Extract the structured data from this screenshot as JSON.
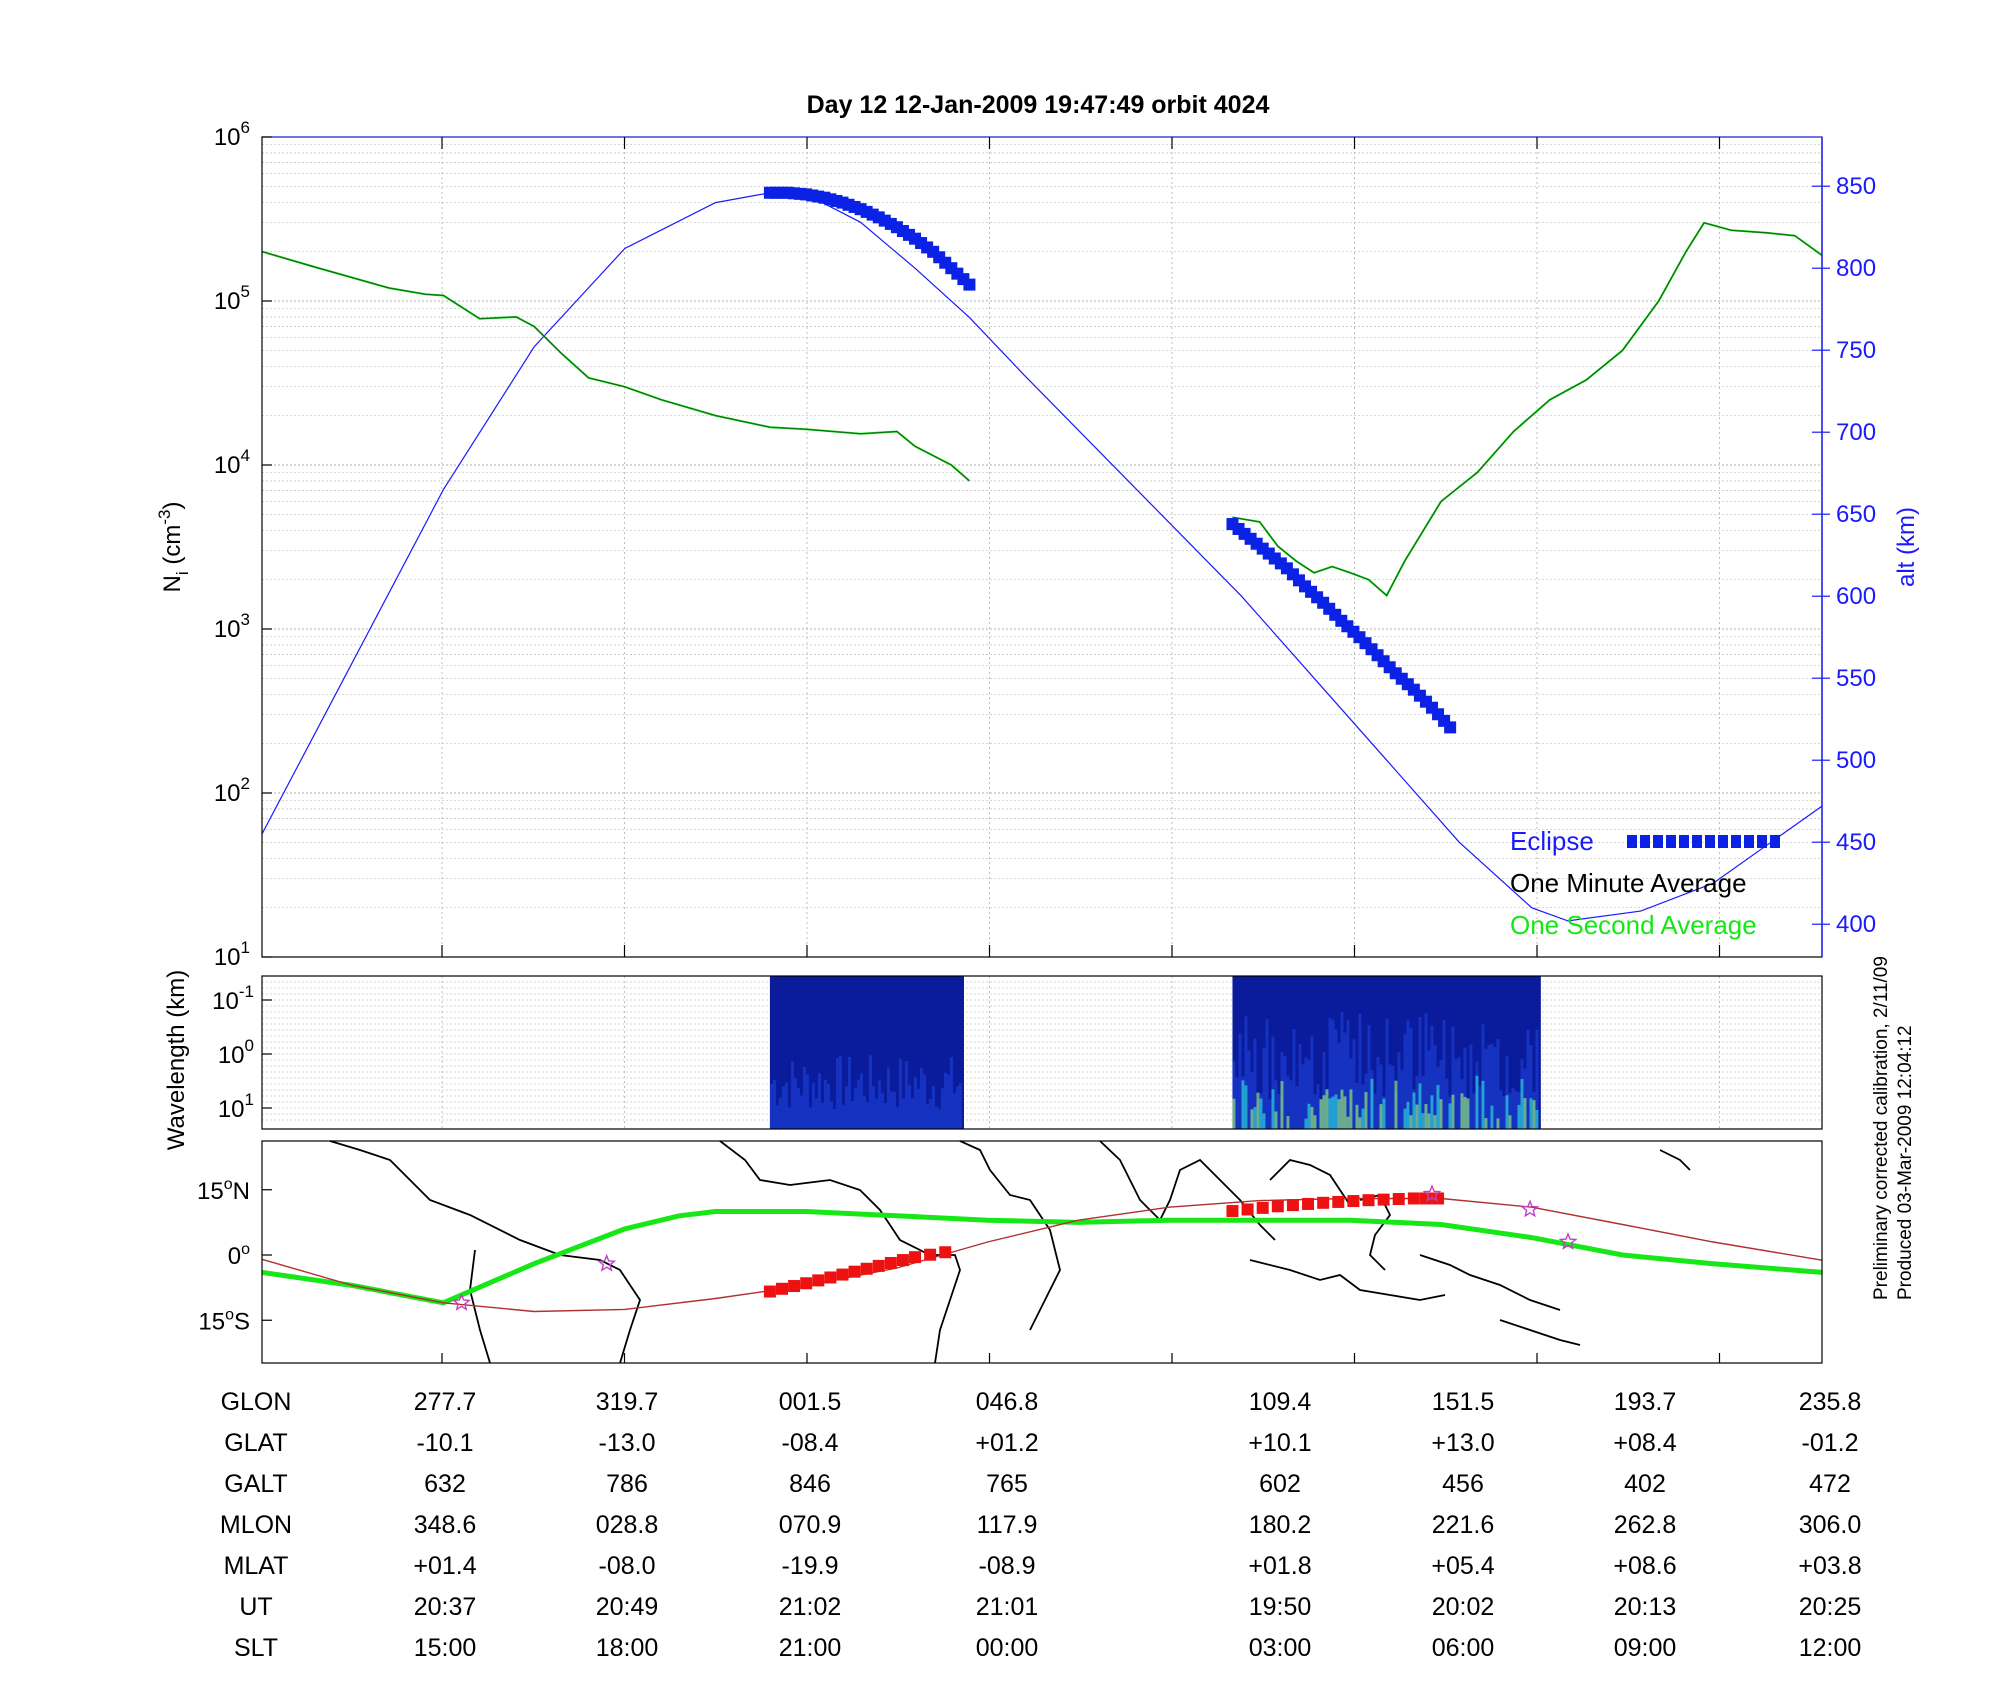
{
  "page": {
    "title": "Day 12  12-Jan-2009 19:47:49   orbit 4024"
  },
  "colors": {
    "alt": "#1a1aff",
    "eclipse": "#0b22e6",
    "one_minute": "#000000",
    "one_second": "#17e617",
    "density": "#0f6e14",
    "track_red": "#ee1111",
    "track_line": "#b03030",
    "stars": "#c040c0",
    "axis": "#000000",
    "grid": "#b0b0b0"
  },
  "footer": {
    "line1": "Preliminary corrected calibration, 2/11/09",
    "line2": "Produced 03-Mar-2009 12:04:12"
  },
  "chart_data": [
    {
      "id": "density",
      "type": "line",
      "title": "Day 12  12-Jan-2009 19:47:49   orbit 4024",
      "ylabel": "N_i (cm^-3)",
      "y2label": "alt (km)",
      "yscale": "log",
      "ylim": [
        10,
        1000000
      ],
      "y2lim": [
        380,
        880
      ],
      "y_ticks": [
        {
          "base": "10",
          "exp": "1"
        },
        {
          "base": "10",
          "exp": "2"
        },
        {
          "base": "10",
          "exp": "3"
        },
        {
          "base": "10",
          "exp": "4"
        },
        {
          "base": "10",
          "exp": "5"
        },
        {
          "base": "10",
          "exp": "6"
        }
      ],
      "y2_ticks": [
        "400",
        "450",
        "500",
        "550",
        "600",
        "650",
        "700",
        "750",
        "800",
        "850"
      ],
      "x_ticks_index": [
        1,
        2,
        3,
        4,
        5,
        6,
        7,
        8
      ],
      "xlim": [
        0,
        8.6
      ],
      "grid": true,
      "legend_position": "bottom-right",
      "legend": [
        {
          "label": "Eclipse",
          "style": "eclipse"
        },
        {
          "label": "One Minute Average",
          "style": "one_minute"
        },
        {
          "label": "One Second Average",
          "style": "one_second"
        }
      ],
      "series": [
        {
          "name": "One Second Average",
          "segments": [
            {
              "x": [
                0,
                0.3,
                0.7,
                0.9,
                1.0,
                1.2,
                1.4,
                1.5,
                1.65,
                1.8,
                2.0,
                2.2,
                2.5,
                2.8,
                3.0,
                3.3,
                3.5,
                3.6,
                3.8,
                3.9
              ],
              "y": [
                200000,
                160000,
                120000,
                110000,
                108000,
                78000,
                80000,
                70000,
                48000,
                34000,
                30000,
                25000,
                20000,
                17000,
                16500,
                15500,
                16000,
                13000,
                10000,
                8000
              ]
            },
            {
              "x": [
                5.35,
                5.5,
                5.6,
                5.7,
                5.8,
                5.9,
                6.0,
                6.1,
                6.2,
                6.3,
                6.5,
                6.7,
                6.9,
                7.1,
                7.3,
                7.5,
                7.7,
                7.85,
                7.95,
                8.1,
                8.3,
                8.45,
                8.6
              ],
              "y": [
                4800,
                4500,
                3200,
                2600,
                2200,
                2400,
                2200,
                2000,
                1600,
                2600,
                6000,
                9000,
                16000,
                25000,
                33000,
                50000,
                100000,
                200000,
                300000,
                270000,
                260000,
                250000,
                190000
              ]
            }
          ]
        },
        {
          "name": "alt",
          "axis": "right",
          "x": [
            0,
            0.5,
            1.0,
            1.5,
            2.0,
            2.5,
            2.8,
            3.0,
            3.3,
            3.6,
            3.9,
            4.2,
            4.6,
            5.0,
            5.4,
            5.8,
            6.2,
            6.6,
            7.0,
            7.2,
            7.6,
            8.0,
            8.6
          ],
          "y": [
            455,
            560,
            665,
            752,
            812,
            840,
            846,
            845,
            828,
            800,
            770,
            735,
            690,
            645,
            600,
            550,
            500,
            450,
            410,
            402,
            408,
            425,
            472
          ]
        }
      ],
      "eclipse_segments": [
        {
          "x": [
            2.8,
            2.9,
            3.0,
            3.1,
            3.2,
            3.3,
            3.4,
            3.5,
            3.6,
            3.7,
            3.8,
            3.9
          ],
          "y": [
            846,
            846,
            845,
            843,
            840,
            836,
            831,
            825,
            818,
            810,
            800,
            790
          ]
        },
        {
          "x": [
            5.35,
            5.45,
            5.55,
            5.65,
            5.75,
            5.85,
            5.95,
            6.05,
            6.15,
            6.25,
            6.35,
            6.45,
            6.55
          ],
          "y": [
            644,
            635,
            626,
            617,
            606,
            596,
            585,
            575,
            564,
            553,
            543,
            532,
            520
          ]
        }
      ]
    },
    {
      "id": "spectrogram",
      "type": "heatmap",
      "ylabel": "Wavelength (km)",
      "y_ticks": [
        {
          "base": "10",
          "exp": "-1"
        },
        {
          "base": "10",
          "exp": "0"
        },
        {
          "base": "10",
          "exp": "1"
        }
      ],
      "blocks": [
        {
          "x0": 2.8,
          "x1": 3.87,
          "intensity": 0.25
        },
        {
          "x0": 5.35,
          "x1": 7.05,
          "intensity": 0.7
        }
      ]
    },
    {
      "id": "groundtrack",
      "type": "line",
      "y_ticks": [
        {
          "deg": "15",
          "hemi": "N"
        },
        {
          "deg": "0",
          "hemi": ""
        },
        {
          "deg": "15",
          "hemi": "S"
        }
      ],
      "magnetic_equator": {
        "x": [
          0,
          0.5,
          1.0,
          1.5,
          2.0,
          2.3,
          2.5,
          3.0,
          3.5,
          4.0,
          4.5,
          5.0,
          5.5,
          6.0,
          6.5,
          7.0,
          7.5,
          8.0,
          8.6
        ],
        "lat": [
          -4,
          -7,
          -11,
          -2,
          6,
          9,
          10,
          10,
          9,
          8,
          7.5,
          8,
          8,
          8,
          7,
          4,
          0,
          -2,
          -4
        ]
      },
      "track": {
        "x": [
          0,
          0.5,
          1.0,
          1.5,
          2.0,
          2.5,
          3.0,
          3.5,
          4.0,
          4.5,
          5.0,
          5.5,
          6.0,
          6.5,
          7.0,
          7.5,
          8.0,
          8.6
        ],
        "lat": [
          -1,
          -7,
          -11,
          -13,
          -12.5,
          -10,
          -7,
          -3,
          3,
          8,
          11,
          12.5,
          13,
          13,
          11,
          7,
          3,
          -1.2
        ]
      },
      "track_highlight": [
        {
          "x": [
            2.8,
            3.0,
            3.2,
            3.4,
            3.6,
            3.85
          ],
          "lat": [
            -8.4,
            -6.5,
            -4.5,
            -2.5,
            -0.5,
            1.2
          ]
        },
        {
          "x": [
            5.35,
            5.6,
            5.85,
            6.1,
            6.35,
            6.55
          ],
          "lat": [
            10.1,
            11.2,
            12.0,
            12.6,
            13.0,
            13.0
          ]
        }
      ],
      "stars": [
        {
          "x": 1.1,
          "lat": -11
        },
        {
          "x": 1.9,
          "lat": -2
        },
        {
          "x": 6.45,
          "lat": 14
        },
        {
          "x": 6.99,
          "lat": 10.5
        },
        {
          "x": 7.2,
          "lat": 3
        }
      ]
    }
  ],
  "table": {
    "rows": [
      {
        "label": "GLON",
        "values": [
          "277.7",
          "319.7",
          "001.5",
          "046.8",
          "109.4",
          "151.5",
          "193.7",
          "235.8"
        ]
      },
      {
        "label": "GLAT",
        "values": [
          "-10.1",
          "-13.0",
          "-08.4",
          "+01.2",
          "+10.1",
          "+13.0",
          "+08.4",
          "-01.2"
        ]
      },
      {
        "label": "GALT",
        "values": [
          "632",
          "786",
          "846",
          "765",
          "602",
          "456",
          "402",
          "472"
        ]
      },
      {
        "label": "MLON",
        "values": [
          "348.6",
          "028.8",
          "070.9",
          "117.9",
          "180.2",
          "221.6",
          "262.8",
          "306.0"
        ]
      },
      {
        "label": "MLAT",
        "values": [
          "+01.4",
          "-08.0",
          "-19.9",
          "-08.9",
          "+01.8",
          "+05.4",
          "+08.6",
          "+03.8"
        ]
      },
      {
        "label": "UT",
        "values": [
          "20:37",
          "20:49",
          "21:02",
          "21:01",
          "19:50",
          "20:02",
          "20:13",
          "20:25"
        ]
      },
      {
        "label": "SLT",
        "values": [
          "15:00",
          "18:00",
          "21:00",
          "00:00",
          "03:00",
          "06:00",
          "09:00",
          "12:00"
        ]
      }
    ]
  }
}
